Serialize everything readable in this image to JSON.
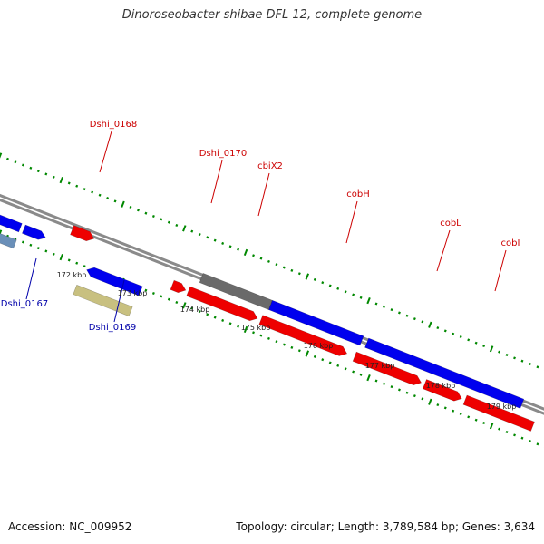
{
  "title": "Dinoroseobacter shibae DFL 12, complete genome",
  "footer": {
    "accession": "Accession: NC_009952",
    "stats": "Topology: circular; Length: 3,789,584 bp; Genes: 3,634"
  },
  "colors": {
    "forward_cds": "#0000ee",
    "reverse_cds": "#ee0000",
    "rna": "#6a8fb8",
    "pseudo": "#6a6a6a",
    "other": "#c8c080",
    "tick": "#008800",
    "backbone": "#8a8a8a",
    "label_forward": "#cc0000",
    "label_reverse": "#0000aa"
  },
  "ruler_labels": [
    "172 kbp",
    "173 kbp",
    "174 kbp",
    "175 kbp",
    "176 kbp",
    "177 kbp",
    "178 kbp",
    "179 kbp"
  ],
  "gene_labels": [
    {
      "name": "Dshi_0168",
      "strand": "forward"
    },
    {
      "name": "Dshi_0170",
      "strand": "forward"
    },
    {
      "name": "cbiX2",
      "strand": "forward"
    },
    {
      "name": "cobH",
      "strand": "forward"
    },
    {
      "name": "cobL",
      "strand": "forward"
    },
    {
      "name": "cobI",
      "strand": "forward"
    },
    {
      "name": "Dshi_0167",
      "strand": "reverse"
    },
    {
      "name": "Dshi_0169",
      "strand": "reverse"
    }
  ]
}
